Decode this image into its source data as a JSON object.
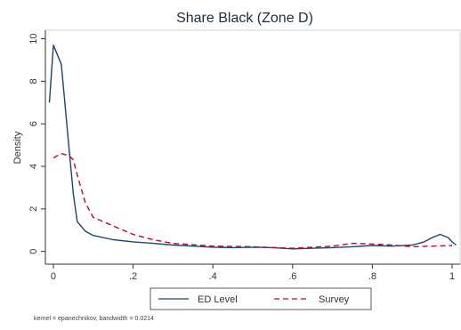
{
  "chart_data": {
    "type": "line",
    "title": "Share Black (Zone D)",
    "xlabel": "",
    "ylabel": "Density",
    "xlim": [
      -0.02,
      1.02
    ],
    "ylim": [
      -0.6,
      10.4
    ],
    "x_ticks": [
      {
        "value": 0,
        "label": "0"
      },
      {
        "value": 0.2,
        "label": ".2"
      },
      {
        "value": 0.4,
        "label": ".4"
      },
      {
        "value": 0.6,
        "label": ".6"
      },
      {
        "value": 0.8,
        "label": ".8"
      },
      {
        "value": 1,
        "label": "1"
      }
    ],
    "y_ticks": [
      {
        "value": 0,
        "label": "0"
      },
      {
        "value": 2,
        "label": "2"
      },
      {
        "value": 4,
        "label": "4"
      },
      {
        "value": 6,
        "label": "6"
      },
      {
        "value": 8,
        "label": "8"
      },
      {
        "value": 10,
        "label": "10"
      }
    ],
    "grid": false,
    "legend_position": "bottom",
    "note": "kernel = epanechnikov, bandwidth = 0.0214",
    "series": [
      {
        "name": "ED Level",
        "style": "solid",
        "color": "#1a476f",
        "points": [
          [
            -0.01,
            7.0
          ],
          [
            0.0,
            9.7
          ],
          [
            0.02,
            8.8
          ],
          [
            0.04,
            4.7
          ],
          [
            0.05,
            2.7
          ],
          [
            0.06,
            1.4
          ],
          [
            0.08,
            0.95
          ],
          [
            0.1,
            0.75
          ],
          [
            0.15,
            0.55
          ],
          [
            0.2,
            0.45
          ],
          [
            0.25,
            0.38
          ],
          [
            0.3,
            0.3
          ],
          [
            0.35,
            0.25
          ],
          [
            0.4,
            0.2
          ],
          [
            0.45,
            0.18
          ],
          [
            0.5,
            0.2
          ],
          [
            0.55,
            0.18
          ],
          [
            0.6,
            0.12
          ],
          [
            0.65,
            0.15
          ],
          [
            0.7,
            0.18
          ],
          [
            0.75,
            0.22
          ],
          [
            0.8,
            0.28
          ],
          [
            0.85,
            0.25
          ],
          [
            0.9,
            0.3
          ],
          [
            0.93,
            0.45
          ],
          [
            0.95,
            0.65
          ],
          [
            0.97,
            0.8
          ],
          [
            0.99,
            0.65
          ],
          [
            1.0,
            0.45
          ],
          [
            1.01,
            0.3
          ]
        ]
      },
      {
        "name": "Survey",
        "style": "dashed",
        "color": "#c10534",
        "points": [
          [
            0.0,
            4.4
          ],
          [
            0.02,
            4.6
          ],
          [
            0.04,
            4.5
          ],
          [
            0.05,
            4.3
          ],
          [
            0.06,
            3.6
          ],
          [
            0.08,
            2.3
          ],
          [
            0.1,
            1.6
          ],
          [
            0.15,
            1.2
          ],
          [
            0.2,
            0.8
          ],
          [
            0.25,
            0.55
          ],
          [
            0.3,
            0.38
          ],
          [
            0.4,
            0.25
          ],
          [
            0.5,
            0.22
          ],
          [
            0.6,
            0.15
          ],
          [
            0.7,
            0.25
          ],
          [
            0.75,
            0.38
          ],
          [
            0.8,
            0.35
          ],
          [
            0.85,
            0.3
          ],
          [
            0.9,
            0.22
          ],
          [
            0.95,
            0.25
          ],
          [
            1.0,
            0.28
          ]
        ]
      }
    ]
  }
}
